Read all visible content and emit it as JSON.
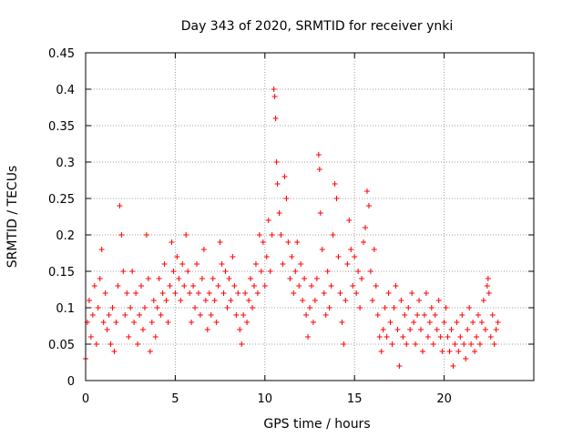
{
  "chart_data": {
    "type": "scatter",
    "title": "Day 343 of 2020, SRMTID for receiver ynki",
    "xlabel": "GPS time / hours",
    "ylabel": "SRMTID / TECUs",
    "xlim": [
      0,
      25
    ],
    "ylim": [
      0,
      0.45
    ],
    "x_ticks": [
      0,
      5,
      10,
      15,
      20
    ],
    "x_tick_labels": [
      "0",
      "5",
      "10",
      "15",
      "20"
    ],
    "y_ticks": [
      0,
      0.05,
      0.1,
      0.15,
      0.2,
      0.25,
      0.3,
      0.35,
      0.4,
      0.45
    ],
    "y_tick_labels": [
      "0",
      "0.05",
      "0.1",
      "0.15",
      "0.2",
      "0.25",
      "0.3",
      "0.35",
      "0.4",
      "0.45"
    ],
    "grid": true,
    "marker": "+",
    "marker_color": "#ff0000",
    "series": [
      {
        "name": "SRMTID",
        "points": [
          [
            0.0,
            0.03
          ],
          [
            0.1,
            0.08
          ],
          [
            0.2,
            0.11
          ],
          [
            0.3,
            0.06
          ],
          [
            0.4,
            0.09
          ],
          [
            0.5,
            0.13
          ],
          [
            0.6,
            0.05
          ],
          [
            0.7,
            0.1
          ],
          [
            0.8,
            0.14
          ],
          [
            0.9,
            0.18
          ],
          [
            1.0,
            0.08
          ],
          [
            1.1,
            0.12
          ],
          [
            1.2,
            0.07
          ],
          [
            1.3,
            0.09
          ],
          [
            1.4,
            0.05
          ],
          [
            1.5,
            0.1
          ],
          [
            1.6,
            0.04
          ],
          [
            1.7,
            0.08
          ],
          [
            1.8,
            0.13
          ],
          [
            1.9,
            0.24
          ],
          [
            2.0,
            0.2
          ],
          [
            2.1,
            0.15
          ],
          [
            2.2,
            0.09
          ],
          [
            2.3,
            0.12
          ],
          [
            2.4,
            0.06
          ],
          [
            2.5,
            0.1
          ],
          [
            2.6,
            0.15
          ],
          [
            2.7,
            0.08
          ],
          [
            2.8,
            0.12
          ],
          [
            2.9,
            0.05
          ],
          [
            3.0,
            0.09
          ],
          [
            3.1,
            0.13
          ],
          [
            3.2,
            0.07
          ],
          [
            3.3,
            0.1
          ],
          [
            3.4,
            0.2
          ],
          [
            3.5,
            0.14
          ],
          [
            3.6,
            0.04
          ],
          [
            3.7,
            0.08
          ],
          [
            3.8,
            0.11
          ],
          [
            3.9,
            0.06
          ],
          [
            4.0,
            0.1
          ],
          [
            4.1,
            0.14
          ],
          [
            4.2,
            0.09
          ],
          [
            4.3,
            0.12
          ],
          [
            4.4,
            0.16
          ],
          [
            4.5,
            0.11
          ],
          [
            4.6,
            0.08
          ],
          [
            4.7,
            0.13
          ],
          [
            4.8,
            0.19
          ],
          [
            4.9,
            0.15
          ],
          [
            5.0,
            0.12
          ],
          [
            5.1,
            0.17
          ],
          [
            5.2,
            0.14
          ],
          [
            5.3,
            0.11
          ],
          [
            5.4,
            0.16
          ],
          [
            5.5,
            0.13
          ],
          [
            5.6,
            0.2
          ],
          [
            5.7,
            0.15
          ],
          [
            5.8,
            0.12
          ],
          [
            5.9,
            0.08
          ],
          [
            6.0,
            0.13
          ],
          [
            6.1,
            0.1
          ],
          [
            6.2,
            0.16
          ],
          [
            6.3,
            0.12
          ],
          [
            6.4,
            0.09
          ],
          [
            6.5,
            0.14
          ],
          [
            6.6,
            0.18
          ],
          [
            6.7,
            0.11
          ],
          [
            6.8,
            0.07
          ],
          [
            6.9,
            0.12
          ],
          [
            7.0,
            0.09
          ],
          [
            7.1,
            0.14
          ],
          [
            7.2,
            0.11
          ],
          [
            7.3,
            0.08
          ],
          [
            7.4,
            0.13
          ],
          [
            7.5,
            0.19
          ],
          [
            7.6,
            0.16
          ],
          [
            7.7,
            0.12
          ],
          [
            7.8,
            0.15
          ],
          [
            7.9,
            0.1
          ],
          [
            8.0,
            0.14
          ],
          [
            8.1,
            0.11
          ],
          [
            8.2,
            0.17
          ],
          [
            8.3,
            0.13
          ],
          [
            8.4,
            0.09
          ],
          [
            8.5,
            0.12
          ],
          [
            8.6,
            0.07
          ],
          [
            8.7,
            0.05
          ],
          [
            8.8,
            0.09
          ],
          [
            8.9,
            0.12
          ],
          [
            9.0,
            0.08
          ],
          [
            9.1,
            0.11
          ],
          [
            9.2,
            0.14
          ],
          [
            9.3,
            0.1
          ],
          [
            9.4,
            0.13
          ],
          [
            9.5,
            0.16
          ],
          [
            9.6,
            0.12
          ],
          [
            9.7,
            0.2
          ],
          [
            9.8,
            0.15
          ],
          [
            9.9,
            0.19
          ],
          [
            10.0,
            0.13
          ],
          [
            10.1,
            0.17
          ],
          [
            10.2,
            0.22
          ],
          [
            10.3,
            0.15
          ],
          [
            10.4,
            0.2
          ],
          [
            10.5,
            0.4
          ],
          [
            10.55,
            0.39
          ],
          [
            10.6,
            0.36
          ],
          [
            10.65,
            0.3
          ],
          [
            10.7,
            0.27
          ],
          [
            10.8,
            0.23
          ],
          [
            10.9,
            0.2
          ],
          [
            11.0,
            0.16
          ],
          [
            11.1,
            0.28
          ],
          [
            11.2,
            0.25
          ],
          [
            11.3,
            0.19
          ],
          [
            11.4,
            0.14
          ],
          [
            11.5,
            0.17
          ],
          [
            11.6,
            0.12
          ],
          [
            11.7,
            0.15
          ],
          [
            11.8,
            0.19
          ],
          [
            11.9,
            0.13
          ],
          [
            12.0,
            0.16
          ],
          [
            12.1,
            0.11
          ],
          [
            12.2,
            0.14
          ],
          [
            12.3,
            0.09
          ],
          [
            12.4,
            0.06
          ],
          [
            12.5,
            0.1
          ],
          [
            12.6,
            0.13
          ],
          [
            12.7,
            0.08
          ],
          [
            12.8,
            0.11
          ],
          [
            12.9,
            0.14
          ],
          [
            13.0,
            0.31
          ],
          [
            13.05,
            0.29
          ],
          [
            13.1,
            0.23
          ],
          [
            13.2,
            0.18
          ],
          [
            13.3,
            0.12
          ],
          [
            13.4,
            0.09
          ],
          [
            13.5,
            0.15
          ],
          [
            13.6,
            0.1
          ],
          [
            13.7,
            0.13
          ],
          [
            13.8,
            0.2
          ],
          [
            13.9,
            0.27
          ],
          [
            14.0,
            0.25
          ],
          [
            14.1,
            0.17
          ],
          [
            14.2,
            0.12
          ],
          [
            14.3,
            0.08
          ],
          [
            14.4,
            0.05
          ],
          [
            14.5,
            0.11
          ],
          [
            14.6,
            0.16
          ],
          [
            14.7,
            0.22
          ],
          [
            14.8,
            0.18
          ],
          [
            14.9,
            0.13
          ],
          [
            15.0,
            0.17
          ],
          [
            15.1,
            0.12
          ],
          [
            15.2,
            0.15
          ],
          [
            15.3,
            0.1
          ],
          [
            15.4,
            0.14
          ],
          [
            15.5,
            0.19
          ],
          [
            15.6,
            0.21
          ],
          [
            15.7,
            0.26
          ],
          [
            15.8,
            0.24
          ],
          [
            15.9,
            0.15
          ],
          [
            16.0,
            0.11
          ],
          [
            16.1,
            0.18
          ],
          [
            16.2,
            0.13
          ],
          [
            16.3,
            0.09
          ],
          [
            16.4,
            0.06
          ],
          [
            16.5,
            0.04
          ],
          [
            16.6,
            0.07
          ],
          [
            16.7,
            0.1
          ],
          [
            16.8,
            0.06
          ],
          [
            16.9,
            0.12
          ],
          [
            17.0,
            0.08
          ],
          [
            17.1,
            0.05
          ],
          [
            17.2,
            0.1
          ],
          [
            17.3,
            0.13
          ],
          [
            17.4,
            0.07
          ],
          [
            17.5,
            0.02
          ],
          [
            17.6,
            0.11
          ],
          [
            17.7,
            0.06
          ],
          [
            17.8,
            0.09
          ],
          [
            17.9,
            0.05
          ],
          [
            18.0,
            0.1
          ],
          [
            18.1,
            0.07
          ],
          [
            18.2,
            0.12
          ],
          [
            18.3,
            0.08
          ],
          [
            18.4,
            0.05
          ],
          [
            18.5,
            0.09
          ],
          [
            18.6,
            0.11
          ],
          [
            18.7,
            0.07
          ],
          [
            18.8,
            0.04
          ],
          [
            18.9,
            0.09
          ],
          [
            19.0,
            0.12
          ],
          [
            19.1,
            0.06
          ],
          [
            19.2,
            0.08
          ],
          [
            19.3,
            0.1
          ],
          [
            19.4,
            0.05
          ],
          [
            19.5,
            0.09
          ],
          [
            19.6,
            0.07
          ],
          [
            19.7,
            0.11
          ],
          [
            19.8,
            0.06
          ],
          [
            19.9,
            0.04
          ],
          [
            20.0,
            0.08
          ],
          [
            20.1,
            0.1
          ],
          [
            20.2,
            0.06
          ],
          [
            20.3,
            0.04
          ],
          [
            20.4,
            0.07
          ],
          [
            20.5,
            0.02
          ],
          [
            20.6,
            0.05
          ],
          [
            20.7,
            0.08
          ],
          [
            20.8,
            0.04
          ],
          [
            20.9,
            0.06
          ],
          [
            21.0,
            0.09
          ],
          [
            21.1,
            0.05
          ],
          [
            21.2,
            0.03
          ],
          [
            21.3,
            0.07
          ],
          [
            21.4,
            0.1
          ],
          [
            21.5,
            0.05
          ],
          [
            21.6,
            0.08
          ],
          [
            21.7,
            0.04
          ],
          [
            21.8,
            0.06
          ],
          [
            21.9,
            0.09
          ],
          [
            22.0,
            0.05
          ],
          [
            22.1,
            0.08
          ],
          [
            22.2,
            0.11
          ],
          [
            22.3,
            0.07
          ],
          [
            22.4,
            0.13
          ],
          [
            22.45,
            0.14
          ],
          [
            22.5,
            0.12
          ],
          [
            22.6,
            0.06
          ],
          [
            22.7,
            0.09
          ],
          [
            22.8,
            0.05
          ],
          [
            22.9,
            0.07
          ],
          [
            23.0,
            0.08
          ]
        ]
      }
    ]
  }
}
